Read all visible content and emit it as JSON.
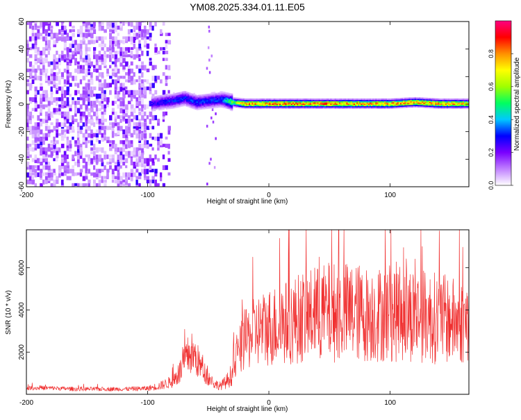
{
  "chart_data": [
    {
      "type": "heatmap",
      "title": "YM08.2025.334.01.11.E05",
      "xlabel": "Height of straight line (km)",
      "ylabel": "Frequency (Hz)",
      "xlim": [
        -200,
        165
      ],
      "ylim": [
        -60,
        60
      ],
      "x_ticks": [
        -200,
        -100,
        0,
        100
      ],
      "y_ticks": [
        -60,
        -40,
        -20,
        0,
        20,
        40,
        60
      ],
      "x_tick_labels": [
        "-200",
        "-100",
        "0",
        "100"
      ],
      "y_tick_labels": [
        "-60",
        "-40",
        "-20",
        "0",
        "20",
        "40",
        "60"
      ],
      "colorbar": {
        "label": "Normalized spectral amplitude",
        "range": [
          0,
          1
        ],
        "ticks": [
          0,
          0.2,
          0.4,
          0.6,
          0.8
        ],
        "tick_labels": [
          "0.0",
          "0.2",
          "0.4",
          "0.6",
          "0.8"
        ],
        "colors": [
          "#ffffff",
          "#c080ff",
          "#7a00ff",
          "#0000ff",
          "#00c8ff",
          "#00ff60",
          "#a0ff00",
          "#ffff00",
          "#ff9000",
          "#ff0000",
          "#ff0080"
        ]
      },
      "noise_region": {
        "x_range": [
          -200,
          -82
        ],
        "amplitude": 0.22
      },
      "signal_track": [
        {
          "x": -97,
          "freq": 0,
          "amplitude": 0.28
        },
        {
          "x": -90,
          "freq": 1,
          "amplitude": 0.3
        },
        {
          "x": -80,
          "freq": 2,
          "amplitude": 0.32
        },
        {
          "x": -70,
          "freq": 4,
          "amplitude": 0.33
        },
        {
          "x": -60,
          "freq": 1,
          "amplitude": 0.34
        },
        {
          "x": -50,
          "freq": 2,
          "amplitude": 0.33
        },
        {
          "x": -40,
          "freq": 3,
          "amplitude": 0.34
        },
        {
          "x": -30,
          "freq": 1,
          "amplitude": 0.6
        },
        {
          "x": -20,
          "freq": 0,
          "amplitude": 0.82
        },
        {
          "x": 0,
          "freq": 0,
          "amplitude": 0.85
        },
        {
          "x": 20,
          "freq": 0,
          "amplitude": 0.86
        },
        {
          "x": 40,
          "freq": 0,
          "amplitude": 0.85
        },
        {
          "x": 60,
          "freq": 0,
          "amplitude": 0.86
        },
        {
          "x": 80,
          "freq": 0,
          "amplitude": 0.84
        },
        {
          "x": 100,
          "freq": 0,
          "amplitude": 0.85
        },
        {
          "x": 120,
          "freq": 1,
          "amplitude": 0.83
        },
        {
          "x": 140,
          "freq": 0,
          "amplitude": 0.82
        },
        {
          "x": 165,
          "freq": 0,
          "amplitude": 0.8
        }
      ]
    },
    {
      "type": "line",
      "xlabel": "Height of straight line (km)",
      "ylabel": "SNR (10 * v/v)",
      "xlim": [
        -200,
        165
      ],
      "ylim": [
        0,
        7800
      ],
      "x_ticks": [
        -200,
        -100,
        0,
        100
      ],
      "y_ticks": [
        2000,
        4000,
        6000
      ],
      "x_tick_labels": [
        "-200",
        "-100",
        "0",
        "100"
      ],
      "y_tick_labels": [
        "2000",
        "4000",
        "6000"
      ],
      "color": "#f03030",
      "series": [
        {
          "name": "SNR",
          "x": [
            -200,
            -180,
            -160,
            -140,
            -120,
            -100,
            -90,
            -80,
            -75,
            -70,
            -65,
            -60,
            -55,
            -50,
            -45,
            -40,
            -35,
            -30,
            -25,
            -20,
            -15,
            -10,
            -5,
            0,
            10,
            20,
            30,
            40,
            50,
            60,
            70,
            80,
            90,
            100,
            110,
            120,
            130,
            140,
            150,
            160,
            165
          ],
          "y": [
            300,
            300,
            250,
            250,
            250,
            280,
            400,
            600,
            900,
            1400,
            2000,
            1700,
            1200,
            800,
            500,
            400,
            600,
            1000,
            2000,
            2500,
            2800,
            3000,
            3100,
            3200,
            3300,
            3500,
            3700,
            3800,
            3900,
            3900,
            3900,
            3800,
            3800,
            3900,
            3900,
            3800,
            3700,
            3600,
            3500,
            3400,
            3500
          ],
          "spread": [
            100,
            100,
            100,
            100,
            100,
            120,
            200,
            300,
            500,
            800,
            1100,
            900,
            600,
            400,
            250,
            200,
            350,
            600,
            1100,
            1400,
            1600,
            1700,
            1800,
            1900,
            2000,
            2100,
            2200,
            2300,
            2400,
            2400,
            2400,
            2300,
            2300,
            2400,
            2400,
            2300,
            2200,
            2200,
            2100,
            2000,
            2000
          ]
        }
      ]
    }
  ]
}
